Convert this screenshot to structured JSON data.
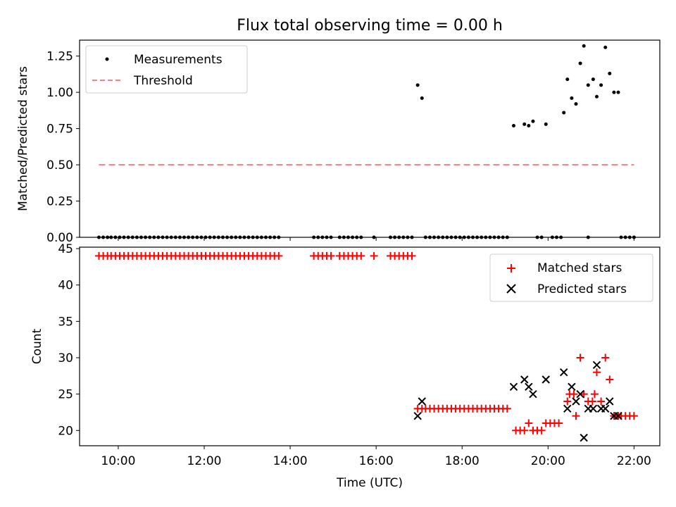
{
  "chart_data": [
    {
      "type": "scatter",
      "title": "Flux total observing time = 0.00 h",
      "xlabel": "",
      "ylabel": "Matched/Predicted stars",
      "xlim": [
        "09:06",
        "22:36"
      ],
      "ylim": [
        0,
        1.36
      ],
      "yticks": [
        0.0,
        0.25,
        0.5,
        0.75,
        1.0,
        1.25
      ],
      "ytick_labels": [
        "0.00",
        "0.25",
        "0.50",
        "0.75",
        "1.00",
        "1.25"
      ],
      "legend_position": "upper left",
      "series": [
        {
          "name": "Measurements",
          "color": "#000000",
          "marker": "dot",
          "points": [
            [
              "09:33",
              0
            ],
            [
              "09:39",
              0
            ],
            [
              "09:45",
              0
            ],
            [
              "09:50",
              0
            ],
            [
              "09:56",
              0
            ],
            [
              "10:02",
              0
            ],
            [
              "10:08",
              0
            ],
            [
              "10:14",
              0
            ],
            [
              "10:20",
              0
            ],
            [
              "10:26",
              0
            ],
            [
              "10:32",
              0
            ],
            [
              "10:38",
              0
            ],
            [
              "10:44",
              0
            ],
            [
              "10:50",
              0
            ],
            [
              "10:56",
              0
            ],
            [
              "11:02",
              0
            ],
            [
              "11:08",
              0
            ],
            [
              "11:14",
              0
            ],
            [
              "11:20",
              0
            ],
            [
              "11:26",
              0
            ],
            [
              "11:32",
              0
            ],
            [
              "11:38",
              0
            ],
            [
              "11:44",
              0
            ],
            [
              "11:50",
              0
            ],
            [
              "11:56",
              0
            ],
            [
              "12:02",
              0
            ],
            [
              "12:08",
              0
            ],
            [
              "12:14",
              0
            ],
            [
              "12:20",
              0
            ],
            [
              "12:26",
              0
            ],
            [
              "12:32",
              0
            ],
            [
              "12:38",
              0
            ],
            [
              "12:44",
              0
            ],
            [
              "12:50",
              0
            ],
            [
              "12:56",
              0
            ],
            [
              "13:02",
              0
            ],
            [
              "13:08",
              0
            ],
            [
              "13:14",
              0
            ],
            [
              "13:20",
              0
            ],
            [
              "13:26",
              0
            ],
            [
              "13:32",
              0
            ],
            [
              "13:38",
              0
            ],
            [
              "13:44",
              0
            ],
            [
              "14:33",
              0
            ],
            [
              "14:39",
              0
            ],
            [
              "14:45",
              0
            ],
            [
              "14:51",
              0
            ],
            [
              "14:57",
              0
            ],
            [
              "15:09",
              0
            ],
            [
              "15:15",
              0
            ],
            [
              "15:21",
              0
            ],
            [
              "15:27",
              0
            ],
            [
              "15:33",
              0
            ],
            [
              "15:39",
              0
            ],
            [
              "15:57",
              0
            ],
            [
              "16:20",
              0
            ],
            [
              "16:26",
              0
            ],
            [
              "16:32",
              0
            ],
            [
              "16:38",
              0
            ],
            [
              "16:44",
              0
            ],
            [
              "16:50",
              0
            ],
            [
              "16:58",
              1.05
            ],
            [
              "17:04",
              0.96
            ],
            [
              "17:09",
              0
            ],
            [
              "17:15",
              0
            ],
            [
              "17:21",
              0
            ],
            [
              "17:27",
              0
            ],
            [
              "17:33",
              0
            ],
            [
              "17:39",
              0
            ],
            [
              "17:45",
              0
            ],
            [
              "17:51",
              0
            ],
            [
              "17:57",
              0
            ],
            [
              "18:03",
              0
            ],
            [
              "18:09",
              0
            ],
            [
              "18:15",
              0
            ],
            [
              "18:21",
              0
            ],
            [
              "18:27",
              0
            ],
            [
              "18:33",
              0
            ],
            [
              "18:39",
              0
            ],
            [
              "18:45",
              0
            ],
            [
              "18:51",
              0
            ],
            [
              "18:57",
              0
            ],
            [
              "19:03",
              0
            ],
            [
              "19:12",
              0.77
            ],
            [
              "19:27",
              0.78
            ],
            [
              "19:33",
              0.77
            ],
            [
              "19:39",
              0.8
            ],
            [
              "19:45",
              0
            ],
            [
              "19:51",
              0
            ],
            [
              "19:57",
              0.78
            ],
            [
              "20:06",
              0
            ],
            [
              "20:12",
              0
            ],
            [
              "20:18",
              0
            ],
            [
              "20:22",
              0.86
            ],
            [
              "20:27",
              1.09
            ],
            [
              "20:33",
              0.96
            ],
            [
              "20:39",
              0.92
            ],
            [
              "20:45",
              1.2
            ],
            [
              "20:50",
              1.32
            ],
            [
              "20:56",
              1.05
            ],
            [
              "20:56",
              0
            ],
            [
              "21:03",
              1.09
            ],
            [
              "21:08",
              0.97
            ],
            [
              "21:14",
              1.05
            ],
            [
              "21:20",
              1.31
            ],
            [
              "21:26",
              1.13
            ],
            [
              "21:32",
              1.0
            ],
            [
              "21:38",
              1.0
            ],
            [
              "21:42",
              0
            ],
            [
              "21:48",
              0
            ],
            [
              "21:54",
              0
            ],
            [
              "22:00",
              0
            ]
          ]
        },
        {
          "name": "Threshold",
          "type": "line",
          "color": "#ff8080",
          "style": "dashed",
          "points": [
            [
              "09:33",
              0.5
            ],
            [
              "22:00",
              0.5
            ]
          ]
        }
      ]
    },
    {
      "type": "scatter",
      "title": "",
      "xlabel": "Time (UTC)",
      "ylabel": "Count",
      "xlim": [
        "09:06",
        "22:36"
      ],
      "ylim": [
        17.9,
        45.2
      ],
      "yticks": [
        20,
        25,
        30,
        35,
        40,
        45
      ],
      "ytick_labels": [
        "20",
        "25",
        "30",
        "35",
        "40",
        "45"
      ],
      "xticks": [
        "10:00",
        "12:00",
        "14:00",
        "16:00",
        "18:00",
        "20:00",
        "22:00"
      ],
      "legend_position": "upper right",
      "series": [
        {
          "name": "Matched stars",
          "color": "#ff0000",
          "marker": "plus",
          "points": [
            [
              "09:33",
              44
            ],
            [
              "09:39",
              44
            ],
            [
              "09:45",
              44
            ],
            [
              "09:50",
              44
            ],
            [
              "09:56",
              44
            ],
            [
              "10:02",
              44
            ],
            [
              "10:08",
              44
            ],
            [
              "10:14",
              44
            ],
            [
              "10:20",
              44
            ],
            [
              "10:26",
              44
            ],
            [
              "10:32",
              44
            ],
            [
              "10:38",
              44
            ],
            [
              "10:44",
              44
            ],
            [
              "10:50",
              44
            ],
            [
              "10:56",
              44
            ],
            [
              "11:02",
              44
            ],
            [
              "11:08",
              44
            ],
            [
              "11:14",
              44
            ],
            [
              "11:20",
              44
            ],
            [
              "11:26",
              44
            ],
            [
              "11:32",
              44
            ],
            [
              "11:38",
              44
            ],
            [
              "11:44",
              44
            ],
            [
              "11:50",
              44
            ],
            [
              "11:56",
              44
            ],
            [
              "12:02",
              44
            ],
            [
              "12:08",
              44
            ],
            [
              "12:14",
              44
            ],
            [
              "12:20",
              44
            ],
            [
              "12:26",
              44
            ],
            [
              "12:32",
              44
            ],
            [
              "12:38",
              44
            ],
            [
              "12:44",
              44
            ],
            [
              "12:50",
              44
            ],
            [
              "12:56",
              44
            ],
            [
              "13:02",
              44
            ],
            [
              "13:08",
              44
            ],
            [
              "13:14",
              44
            ],
            [
              "13:20",
              44
            ],
            [
              "13:26",
              44
            ],
            [
              "13:32",
              44
            ],
            [
              "13:38",
              44
            ],
            [
              "13:44",
              44
            ],
            [
              "14:33",
              44
            ],
            [
              "14:39",
              44
            ],
            [
              "14:45",
              44
            ],
            [
              "14:51",
              44
            ],
            [
              "14:57",
              44
            ],
            [
              "15:09",
              44
            ],
            [
              "15:15",
              44
            ],
            [
              "15:21",
              44
            ],
            [
              "15:27",
              44
            ],
            [
              "15:33",
              44
            ],
            [
              "15:39",
              44
            ],
            [
              "15:57",
              44
            ],
            [
              "16:20",
              44
            ],
            [
              "16:26",
              44
            ],
            [
              "16:32",
              44
            ],
            [
              "16:38",
              44
            ],
            [
              "16:44",
              44
            ],
            [
              "16:50",
              44
            ],
            [
              "16:58",
              23
            ],
            [
              "17:04",
              23
            ],
            [
              "17:09",
              23
            ],
            [
              "17:15",
              23
            ],
            [
              "17:21",
              23
            ],
            [
              "17:27",
              23
            ],
            [
              "17:33",
              23
            ],
            [
              "17:39",
              23
            ],
            [
              "17:45",
              23
            ],
            [
              "17:51",
              23
            ],
            [
              "17:57",
              23
            ],
            [
              "18:03",
              23
            ],
            [
              "18:09",
              23
            ],
            [
              "18:15",
              23
            ],
            [
              "18:21",
              23
            ],
            [
              "18:27",
              23
            ],
            [
              "18:33",
              23
            ],
            [
              "18:39",
              23
            ],
            [
              "18:45",
              23
            ],
            [
              "18:51",
              23
            ],
            [
              "18:57",
              23
            ],
            [
              "19:03",
              23
            ],
            [
              "19:15",
              20
            ],
            [
              "19:21",
              20
            ],
            [
              "19:27",
              20
            ],
            [
              "19:33",
              21
            ],
            [
              "19:39",
              20
            ],
            [
              "19:45",
              20
            ],
            [
              "19:51",
              20
            ],
            [
              "19:57",
              21
            ],
            [
              "20:03",
              21
            ],
            [
              "20:09",
              21
            ],
            [
              "20:15",
              21
            ],
            [
              "20:27",
              24
            ],
            [
              "20:30",
              25
            ],
            [
              "20:36",
              25
            ],
            [
              "20:39",
              22
            ],
            [
              "20:45",
              30
            ],
            [
              "20:50",
              25
            ],
            [
              "20:56",
              24
            ],
            [
              "21:02",
              24
            ],
            [
              "21:05",
              25
            ],
            [
              "21:08",
              28
            ],
            [
              "21:14",
              24
            ],
            [
              "21:20",
              30
            ],
            [
              "21:26",
              27
            ],
            [
              "21:32",
              22
            ],
            [
              "21:38",
              22
            ],
            [
              "21:42",
              22
            ],
            [
              "21:48",
              22
            ],
            [
              "21:54",
              22
            ],
            [
              "22:00",
              22
            ]
          ]
        },
        {
          "name": "Predicted stars",
          "color": "#000000",
          "marker": "x",
          "points": [
            [
              "16:58",
              22
            ],
            [
              "17:04",
              24
            ],
            [
              "19:12",
              26
            ],
            [
              "19:27",
              27
            ],
            [
              "19:33",
              26
            ],
            [
              "19:39",
              25
            ],
            [
              "19:57",
              27
            ],
            [
              "20:22",
              28
            ],
            [
              "20:27",
              23
            ],
            [
              "20:33",
              26
            ],
            [
              "20:39",
              24
            ],
            [
              "20:45",
              25
            ],
            [
              "20:50",
              19
            ],
            [
              "20:56",
              23
            ],
            [
              "21:03",
              23
            ],
            [
              "21:08",
              29
            ],
            [
              "21:14",
              23
            ],
            [
              "21:20",
              23
            ],
            [
              "21:26",
              24
            ],
            [
              "21:32",
              22
            ],
            [
              "21:38",
              22
            ]
          ]
        }
      ]
    }
  ]
}
